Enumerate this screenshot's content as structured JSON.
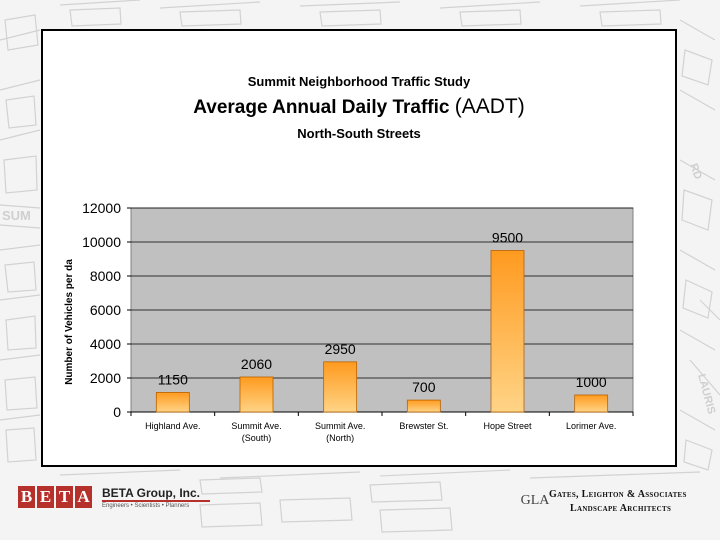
{
  "header": {
    "subtitle_top": "Summit Neighborhood Traffic Study",
    "title": "Average Annual Daily Traffic",
    "title_paren": "(AADT)",
    "subtitle_bottom": "North-South Streets"
  },
  "chart_data": {
    "type": "bar",
    "categories": [
      [
        "Highland Ave."
      ],
      [
        "Summit Ave.",
        "(South)"
      ],
      [
        "Summit Ave.",
        "(North)"
      ],
      [
        "Brewster St."
      ],
      [
        "Hope Street"
      ],
      [
        "Lorimer Ave."
      ]
    ],
    "values": [
      1150,
      2060,
      2950,
      700,
      9500,
      1000
    ],
    "data_labels": [
      "1150",
      "2060",
      "2950",
      "700",
      "9500",
      "1000"
    ],
    "ylabel": "Number of Vehicles per da",
    "xlabel": "",
    "ylim": [
      0,
      12000
    ],
    "yticks": [
      0,
      2000,
      4000,
      6000,
      8000,
      10000,
      12000
    ],
    "grid": true,
    "legend": "none"
  },
  "colors": {
    "plot_bg": "#c0c0c0",
    "bar_top": "#ff9a1f",
    "bar_bottom": "#ffd486",
    "bar_border": "#b86200"
  },
  "map_labels": [
    "SUM",
    "RD",
    "LAURIS"
  ],
  "footer": {
    "beta_letters": [
      "B",
      "E",
      "T",
      "A"
    ],
    "beta_name": "BETA Group, Inc.",
    "beta_tagline": "Engineers • Scientists • Planners",
    "gla_mark": "GLA",
    "gla_line1": "Gates, Leighton & Associates",
    "gla_line2": "Landscape Architects"
  }
}
